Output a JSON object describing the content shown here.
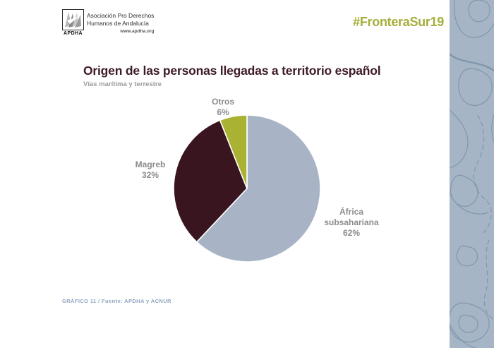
{
  "header": {
    "logo": {
      "acronym": "APDHA",
      "org_line1": "Asociación Pro Derechos",
      "org_line2": "Humanos de Andalucía",
      "website": "www.apdha.org"
    },
    "hashtag": "#FronteraSur19"
  },
  "chart_data": {
    "type": "pie",
    "title": "Origen de las personas llegadas a territorio español",
    "subtitle": "Vías marítima y terrestre",
    "start_angle_deg": 0,
    "direction": "clockwise",
    "legend": "none",
    "label_color": "#8c8c8c",
    "slices": [
      {
        "label": "África subsahariana",
        "label_lines": [
          "África",
          "subsahariana"
        ],
        "value": 62,
        "pct_label": "62%",
        "color": "#a8b4c6"
      },
      {
        "label": "Magreb",
        "label_lines": [
          "Magreb"
        ],
        "value": 32,
        "pct_label": "32%",
        "color": "#391520"
      },
      {
        "label": "Otros",
        "label_lines": [
          "Otros"
        ],
        "value": 6,
        "pct_label": "6%",
        "color": "#a9b233"
      }
    ]
  },
  "footer": {
    "caption": "GRÁFICO 11 / Fuente: APDHA y ACNUR"
  },
  "theme": {
    "title_color": "#3e1b28",
    "hashtag_color": "#a5ae3a",
    "sidebar_bg": "#a6b5c5",
    "sidebar_line": "#7e97ad",
    "slice_stroke": "#ffffff"
  }
}
